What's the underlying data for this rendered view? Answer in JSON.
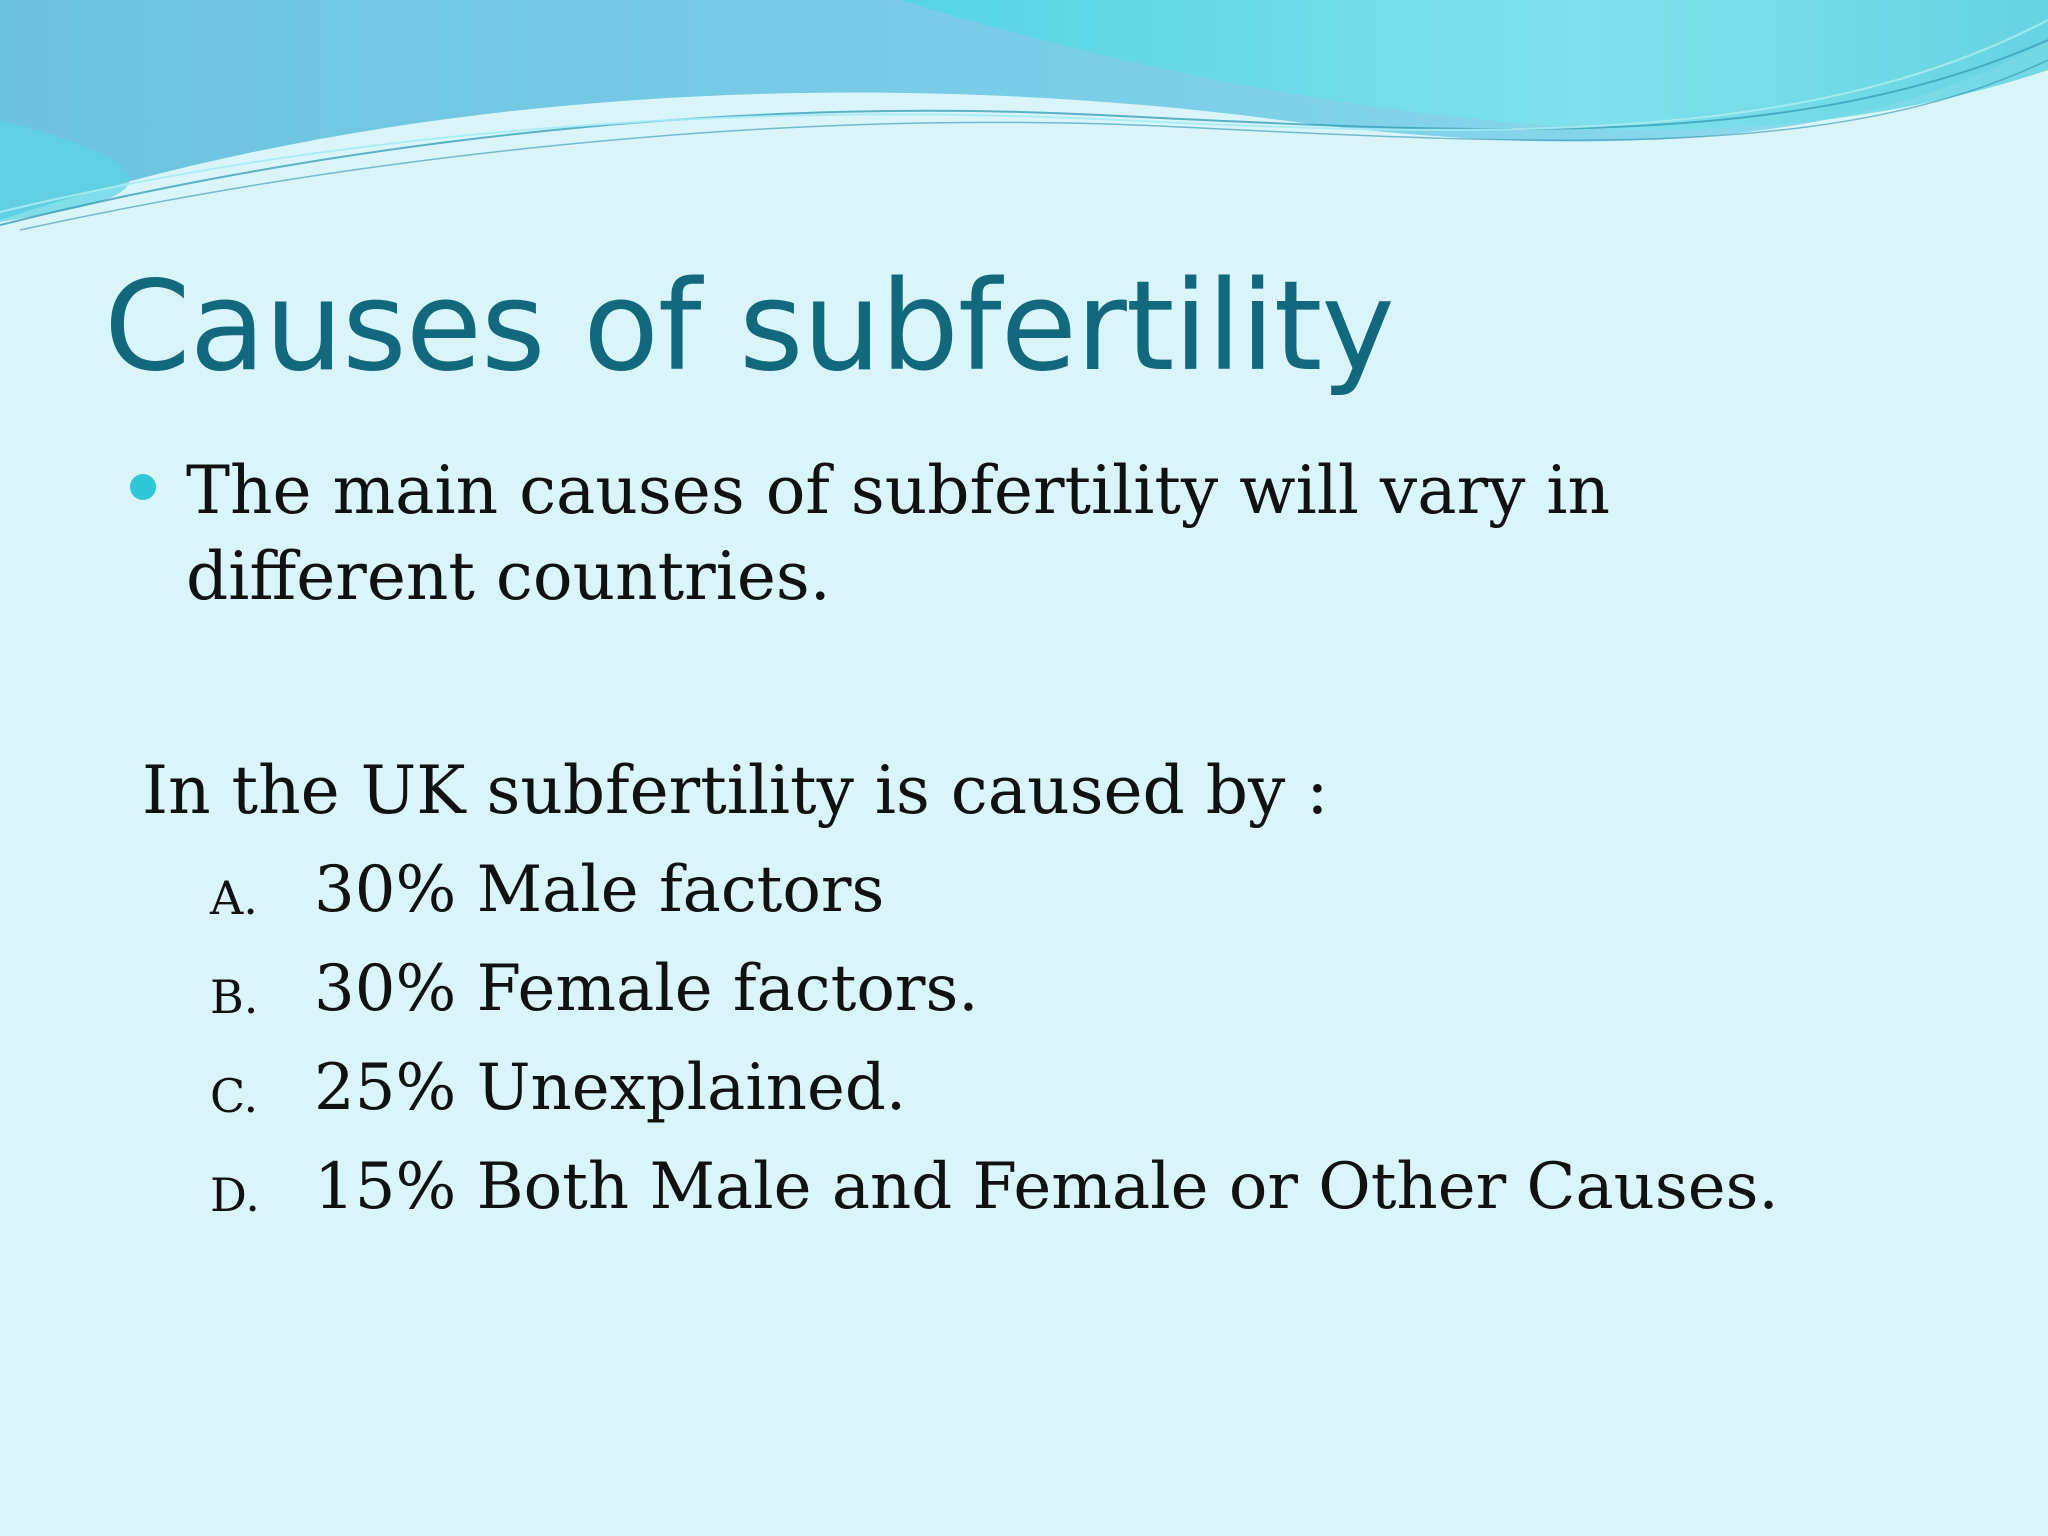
{
  "slide": {
    "title": "Causes of subfertility",
    "bullet": "The main causes of subfertility will vary in different countries.",
    "intro": "In the UK subfertility is caused by :",
    "causes": [
      {
        "letter": "A.",
        "text": "30% Male factors"
      },
      {
        "letter": "B.",
        "text": "30% Female factors."
      },
      {
        "letter": "C.",
        "text": "25% Unexplained."
      },
      {
        "letter": "D.",
        "text": "15% Both Male and Female or Other Causes."
      }
    ]
  },
  "colors": {
    "background": "#d9f5fa",
    "title": "#12697d",
    "bullet": "#2fc6d8",
    "wave_dark": "#5fb4d9",
    "wave_light": "#7fe0ea"
  }
}
